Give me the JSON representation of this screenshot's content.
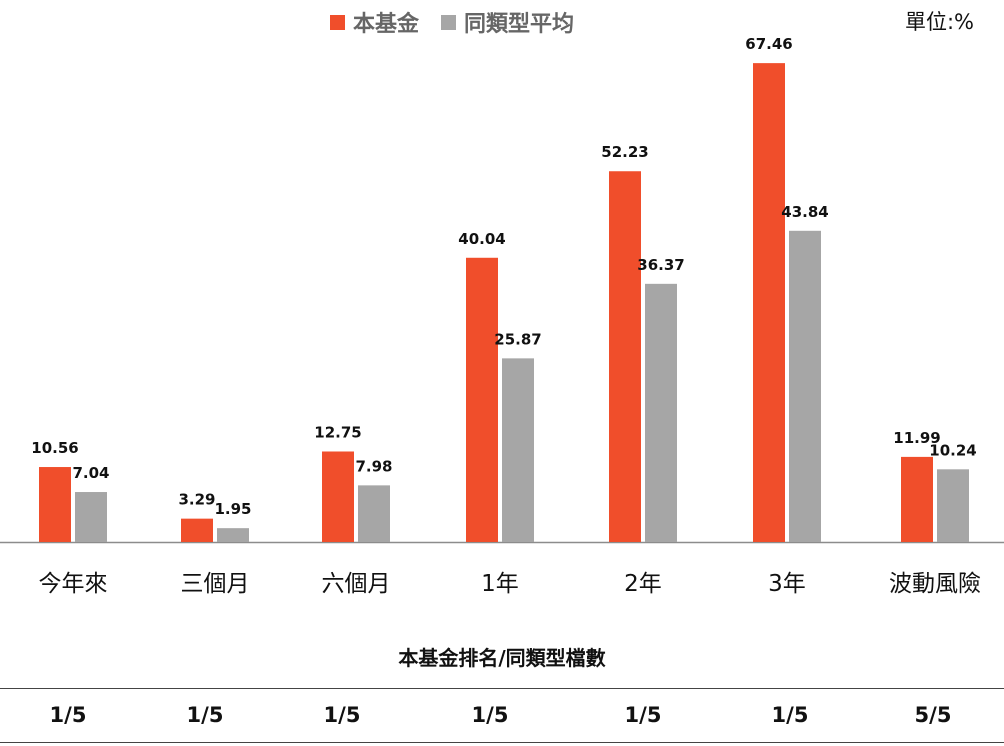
{
  "legend": {
    "fund_label": "本基金",
    "avg_label": "同類型平均"
  },
  "unit_label": "單位:%",
  "colors": {
    "fund": "#F04E2B",
    "average": "#A6A6A6",
    "axis": "#8C8C8C"
  },
  "chart_data": {
    "type": "bar",
    "categories": [
      "今年來",
      "三個月",
      "六個月",
      "1年",
      "2年",
      "3年",
      "波動風險"
    ],
    "series": [
      {
        "name": "本基金",
        "values": [
          10.56,
          3.29,
          12.75,
          40.04,
          52.23,
          67.46,
          11.99
        ]
      },
      {
        "name": "同類型平均",
        "values": [
          7.04,
          1.95,
          7.98,
          25.87,
          36.37,
          43.84,
          10.24
        ]
      }
    ],
    "ylim": [
      0,
      71
    ],
    "grid": false,
    "legend_position": "top"
  },
  "ranking": {
    "title": "本基金排名/同類型檔數",
    "values": [
      "1/5",
      "1/5",
      "1/5",
      "1/5",
      "1/5",
      "1/5",
      "5/5"
    ]
  }
}
